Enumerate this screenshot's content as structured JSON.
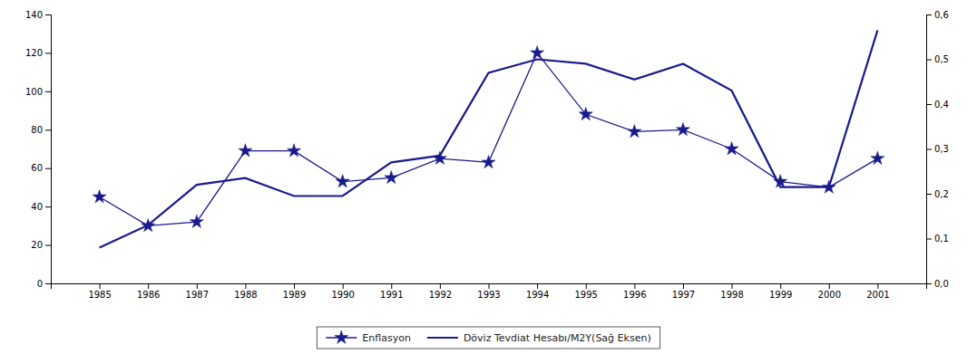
{
  "chart_data": {
    "type": "line",
    "x": [
      1985,
      1986,
      1987,
      1988,
      1989,
      1990,
      1991,
      1992,
      1993,
      1994,
      1995,
      1996,
      1997,
      1998,
      1999,
      2000,
      2001
    ],
    "xlim": [
      1984,
      2002
    ],
    "xticks": [
      1985,
      1986,
      1987,
      1988,
      1989,
      1990,
      1991,
      1992,
      1993,
      1994,
      1995,
      1996,
      1997,
      1998,
      1999,
      2000,
      2001
    ],
    "ylim": [
      0,
      140
    ],
    "yticks": [
      0,
      20,
      40,
      60,
      80,
      100,
      120,
      140
    ],
    "y2lim": [
      0.0,
      0.6
    ],
    "y2ticks": [
      {
        "value": 0.0,
        "label": "0,0"
      },
      {
        "value": 0.1,
        "label": "0,1"
      },
      {
        "value": 0.2,
        "label": "0,2"
      },
      {
        "value": 0.3,
        "label": "0,3"
      },
      {
        "value": 0.4,
        "label": "0,4"
      },
      {
        "value": 0.5,
        "label": "0,5"
      },
      {
        "value": 0.6,
        "label": "0,6"
      }
    ],
    "series": [
      {
        "name": "Enflasyon",
        "color": "#1a1a8c",
        "marker": "star",
        "line_style": "solid",
        "axis": "y",
        "values": [
          45,
          30,
          32,
          69,
          69,
          53,
          55,
          65,
          63,
          120,
          88,
          79,
          80,
          70,
          53,
          50,
          65
        ]
      },
      {
        "name": "Döviz Tevdiat Hesabı/M2Y(Sağ Eksen)",
        "color": "#1a1a8c",
        "line_style": "solid",
        "axis": "y2",
        "values": [
          0.08,
          0.13,
          0.22,
          0.235,
          0.195,
          0.195,
          0.27,
          0.285,
          0.47,
          0.5,
          0.49,
          0.455,
          0.49,
          0.43,
          0.215,
          0.215,
          0.565
        ]
      }
    ],
    "grid": false,
    "legend": "bottom"
  }
}
